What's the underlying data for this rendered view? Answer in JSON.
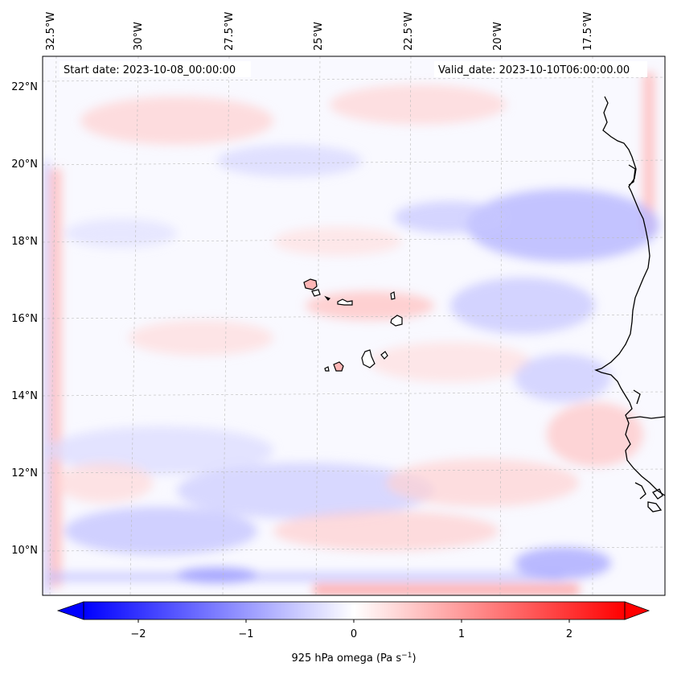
{
  "map": {
    "start_date_label": "Start date: 2023-10-08_00:00:00",
    "valid_date_label": "Valid_date: 2023-10-10T06:00:00.00",
    "lon_labels": [
      "32.5°W",
      "30°W",
      "27.5°W",
      "25°W",
      "22.5°W",
      "20°W",
      "17.5°W"
    ],
    "lat_labels": [
      "22°N",
      "20°N",
      "18°N",
      "16°N",
      "14°N",
      "12°N",
      "10°N"
    ],
    "gridlines": true,
    "gridline_color": "#bbbbbb"
  },
  "colorbar": {
    "label_main": "925 hPa omega (Pa s",
    "label_exp": "−1",
    "label_close": ")",
    "ticks": [
      "−2",
      "−1",
      "0",
      "1",
      "2"
    ],
    "min": -2.7,
    "max": 2.7,
    "colors": {
      "low": "#0000ff",
      "mid": "#ffffff",
      "high": "#ff0000"
    }
  }
}
